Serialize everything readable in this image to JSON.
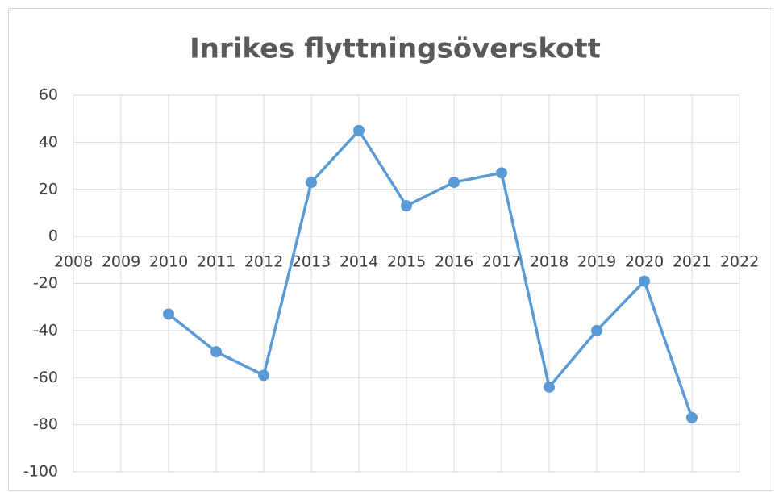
{
  "chart_data": {
    "type": "line",
    "title": "Inrikes flyttningsöverskott",
    "x": [
      2010,
      2011,
      2012,
      2013,
      2014,
      2015,
      2016,
      2017,
      2018,
      2019,
      2020,
      2021
    ],
    "series": [
      {
        "name": "Inrikes flyttningsöverskott",
        "color": "#5b9bd5",
        "values": [
          -33,
          -49,
          -59,
          23,
          45,
          13,
          23,
          27,
          -64,
          -40,
          -19,
          -77
        ]
      }
    ],
    "xlim": [
      2008,
      2022
    ],
    "xticks": [
      2008,
      2009,
      2010,
      2011,
      2012,
      2013,
      2014,
      2015,
      2016,
      2017,
      2018,
      2019,
      2020,
      2021,
      2022
    ],
    "ylim": [
      -100,
      60
    ],
    "yticks": [
      -100,
      -80,
      -60,
      -40,
      -20,
      0,
      20,
      40,
      60
    ],
    "grid": true
  }
}
